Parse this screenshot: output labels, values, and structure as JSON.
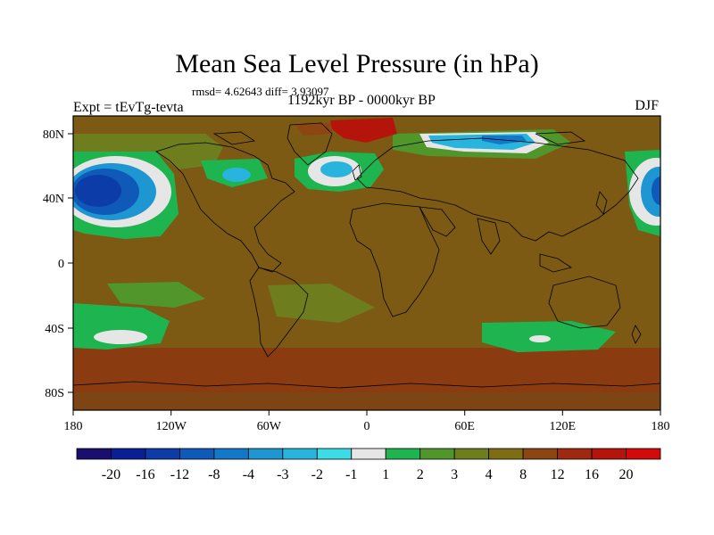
{
  "title": "Mean Sea Level Pressure (in hPa)",
  "stats": "rmsd= 4.62643 diff= 3.93097",
  "experiment": "Expt = tEvTg-tevta",
  "period": "1192kyr BP - 0000kyr BP",
  "season": "DJF",
  "lat_ticks": [
    "80N",
    "40N",
    "0",
    "40S",
    "80S"
  ],
  "lon_ticks": [
    "180",
    "120W",
    "60W",
    "0",
    "60E",
    "120E",
    "180"
  ],
  "colorbar": {
    "labels": [
      "-20",
      "-16",
      "-12",
      "-8",
      "-4",
      "-3",
      "-2",
      "-1",
      "1",
      "2",
      "3",
      "4",
      "8",
      "12",
      "16",
      "20"
    ],
    "colors": [
      "#1a0e6e",
      "#0a1e96",
      "#0c3ca8",
      "#0f5ab8",
      "#1478c8",
      "#1e96d2",
      "#28b4dc",
      "#3cdce6",
      "#e6e6e6",
      "#1eb450",
      "#50962a",
      "#6e7d1e",
      "#7d6e14",
      "#8c4614",
      "#a0280f",
      "#b4140a",
      "#d20a0a"
    ]
  },
  "colors": {
    "background_field": "#7d5a14",
    "land_outline": "#000000"
  }
}
